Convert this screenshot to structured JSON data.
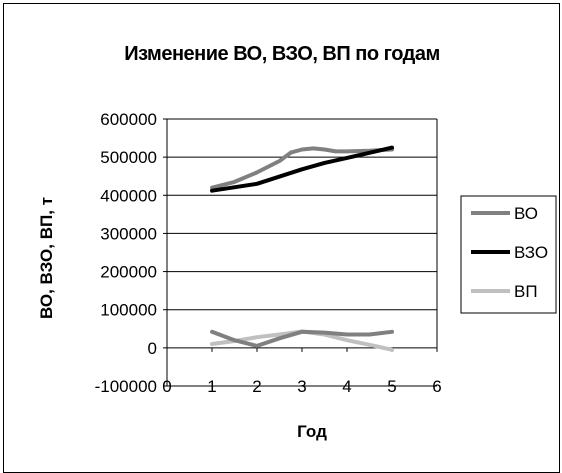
{
  "chart_data": {
    "type": "line",
    "title": "Изменение ВО, ВЗО, ВП по годам",
    "xlabel": "Год",
    "ylabel": "ВО, ВЗО, ВП, т",
    "xlim": [
      0,
      6
    ],
    "ylim": [
      -100000,
      600000
    ],
    "x_ticks": [
      0,
      1,
      2,
      3,
      4,
      5,
      6
    ],
    "y_ticks": [
      -100000,
      0,
      100000,
      200000,
      300000,
      400000,
      500000,
      600000
    ],
    "x_tick_labels": [
      "0",
      "1",
      "2",
      "3",
      "4",
      "5",
      "6"
    ],
    "y_tick_labels": [
      "-100000",
      "0",
      "100000",
      "200000",
      "300000",
      "400000",
      "500000",
      "600000"
    ],
    "grid": "horizontal major",
    "legend_position": "right",
    "series": [
      {
        "name": "ВО",
        "color": "#808080",
        "points": [
          [
            1,
            420000
          ],
          [
            1.5,
            435000
          ],
          [
            2,
            460000
          ],
          [
            2.5,
            490000
          ],
          [
            2.75,
            512000
          ],
          [
            3,
            520000
          ],
          [
            3.25,
            523000
          ],
          [
            3.5,
            520000
          ],
          [
            3.75,
            515000
          ],
          [
            4,
            515000
          ],
          [
            4.5,
            517000
          ],
          [
            5,
            520000
          ]
        ]
      },
      {
        "name": "ВЗО",
        "color": "#000000",
        "points": [
          [
            1,
            412000
          ],
          [
            2,
            430000
          ],
          [
            3,
            468000
          ],
          [
            3.5,
            485000
          ],
          [
            4,
            498000
          ],
          [
            5,
            525000
          ]
        ]
      },
      {
        "name": "ВП",
        "color": "#c0c0c0",
        "points": [
          [
            1,
            10000
          ],
          [
            1.5,
            18000
          ],
          [
            2,
            28000
          ],
          [
            2.5,
            35000
          ],
          [
            3,
            43000
          ],
          [
            3.5,
            35000
          ],
          [
            4,
            20000
          ],
          [
            4.5,
            8000
          ],
          [
            5,
            -5000
          ]
        ]
      },
      {
        "name": "",
        "color": "#808080",
        "points": [
          [
            1,
            42000
          ],
          [
            1.5,
            20000
          ],
          [
            2,
            5000
          ],
          [
            2.5,
            25000
          ],
          [
            3,
            42000
          ],
          [
            3.5,
            40000
          ],
          [
            4,
            35000
          ],
          [
            4.5,
            35000
          ],
          [
            5,
            42000
          ]
        ]
      }
    ]
  }
}
